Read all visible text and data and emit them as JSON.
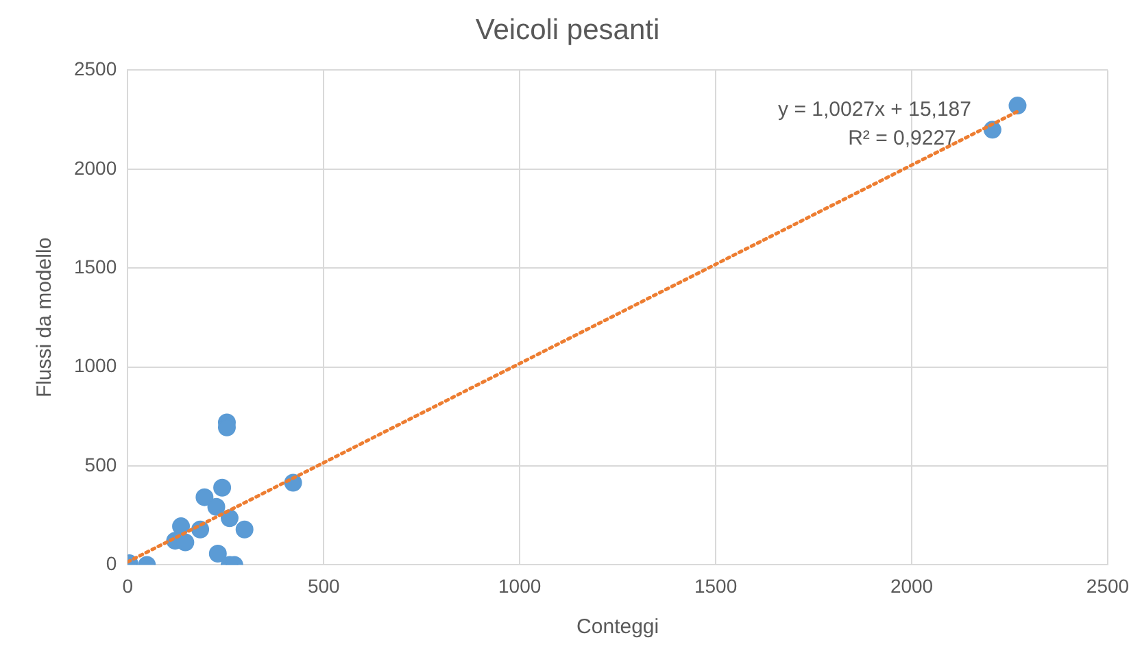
{
  "chart_data": {
    "type": "scatter",
    "title": "Veicoli pesanti",
    "xlabel": "Conteggi",
    "ylabel": "Flussi da modello",
    "xlim": [
      0,
      2500
    ],
    "xticks": [
      0,
      500,
      1000,
      1500,
      2000,
      2500
    ],
    "ylim": [
      0,
      2500
    ],
    "yticks": [
      0,
      500,
      1000,
      1500,
      2000,
      2500
    ],
    "grid": true,
    "marker": "circle",
    "series": [
      {
        "color": "#5b9bd5",
        "x": [
          4,
          49,
          253,
          253,
          422,
          241,
          196,
          226,
          260,
          298,
          185,
          136,
          121,
          147,
          230,
          260,
          272,
          2206,
          2270
        ],
        "values": [
          8,
          0,
          720,
          695,
          415,
          390,
          342,
          293,
          236,
          179,
          179,
          195,
          122,
          114,
          57,
          0,
          0,
          2199,
          2321
        ]
      },
      {
        "type": "line",
        "line_style": "dotted",
        "marker": "none",
        "color": "#ed7d31",
        "x": [
          0,
          2270
        ],
        "values": [
          15,
          2291
        ]
      }
    ],
    "annotations": [
      "y = 1,0027x + 15,187",
      "R² = 0,9227"
    ]
  }
}
